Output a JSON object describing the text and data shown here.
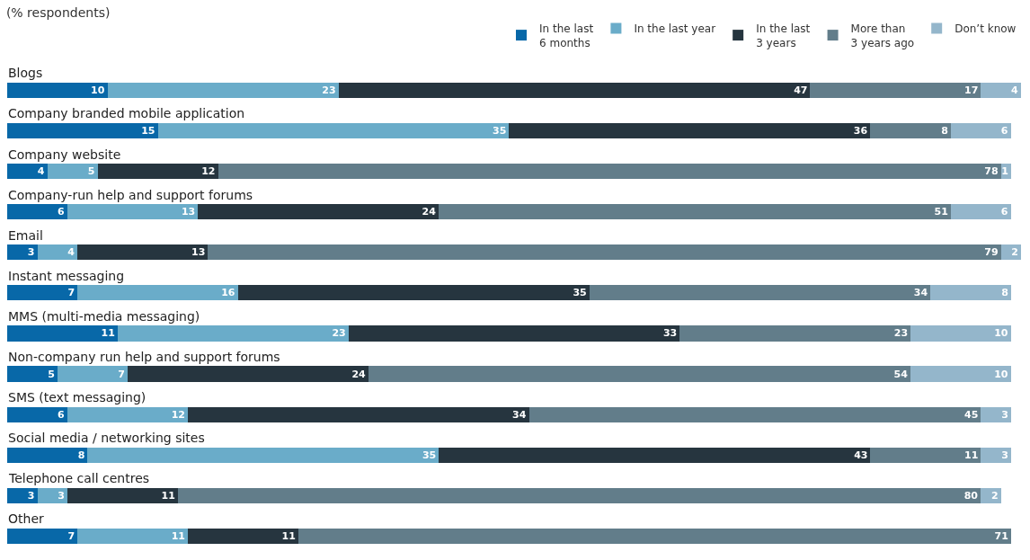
{
  "chart_data": {
    "type": "bar",
    "orientation": "horizontal",
    "stacked": true,
    "title": "(% respondents)",
    "categories": [
      "Blogs",
      "Company branded mobile application",
      "Company website",
      "Company-run help and support forums",
      "Email",
      "Instant messaging",
      "MMS (multi-media messaging)",
      "Non-company run help and support forums",
      "SMS (text messaging)",
      "Social media / networking sites",
      "Telephone call centres",
      "Other"
    ],
    "series": [
      {
        "name": "In the last\n6 months",
        "color": "#0868a8",
        "values": [
          10,
          15,
          4,
          6,
          3,
          7,
          11,
          5,
          6,
          8,
          3,
          7
        ]
      },
      {
        "name": "In the last year",
        "color": "#6aacc9",
        "values": [
          23,
          35,
          5,
          13,
          4,
          16,
          23,
          7,
          12,
          35,
          3,
          11
        ]
      },
      {
        "name": "In the last\n3 years",
        "color": "#26353f",
        "values": [
          47,
          36,
          12,
          24,
          13,
          35,
          33,
          24,
          34,
          43,
          11,
          11
        ]
      },
      {
        "name": "More than\n3 years ago",
        "color": "#627d8a",
        "values": [
          17,
          8,
          78,
          51,
          79,
          34,
          23,
          54,
          45,
          11,
          80,
          71
        ]
      },
      {
        "name": "Don’t know",
        "color": "#94b6cb",
        "values": [
          4,
          6,
          1,
          6,
          2,
          8,
          10,
          10,
          3,
          3,
          2,
          null
        ]
      }
    ],
    "data_labels": true,
    "legend": "top right"
  }
}
